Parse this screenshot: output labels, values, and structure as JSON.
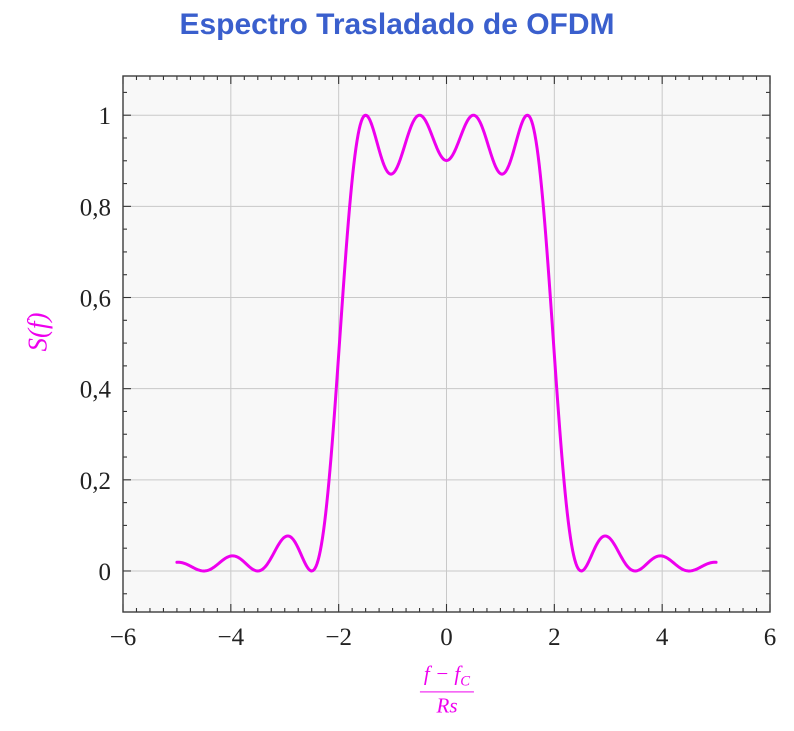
{
  "chart_data": {
    "type": "line",
    "title": "Espectro Trasladado de OFDM",
    "ylabel": "S(f)",
    "xlabel": "(f − f_C) / Rs",
    "xlabel_parts": {
      "numerator_main": "f − f",
      "numerator_sub": "C",
      "denominator": "Rs"
    },
    "xlim": [
      -6,
      6
    ],
    "ylim": [
      -0.09,
      1.086
    ],
    "xticks": {
      "values": [
        -6,
        -4,
        -2,
        0,
        2,
        4,
        6
      ],
      "labels": [
        "−6",
        "−4",
        "−2",
        "0",
        "2",
        "4",
        "6"
      ]
    },
    "yticks": {
      "values": [
        0,
        0.2,
        0.4,
        0.6,
        0.8,
        1
      ],
      "labels": [
        "0",
        "0,2",
        "0,4",
        "0,6",
        "0,8",
        "1"
      ]
    },
    "minor_x_step": 0.25,
    "minor_y_step": 0.05,
    "grid": "major",
    "legend": "none",
    "series": [
      {
        "name": "S(f)",
        "model": "sum of sinc^2(f - fk) over OFDM subcarriers",
        "subcarriers": [
          -1.5,
          -0.5,
          0.5,
          1.5
        ],
        "f_range": [
          -5,
          5
        ],
        "samples": {
          "x": [
            -5,
            -4.5,
            -4,
            -3.5,
            -3,
            -2.5,
            -2,
            -1.5,
            -1,
            -0.5,
            0,
            0.5,
            1,
            1.5,
            2,
            2.5,
            3,
            3.5,
            4,
            4.5,
            5
          ],
          "y": [
            0.019,
            0,
            0.033,
            0,
            0.075,
            0,
            0.475,
            1,
            0.872,
            1,
            0.901,
            1,
            0.872,
            1,
            0.475,
            0,
            0.075,
            0,
            0.033,
            0,
            0.019
          ]
        }
      }
    ],
    "colors": {
      "curve": "#ee00ee",
      "title": "#3a5fcd",
      "axis_labels": "#ee00ee",
      "grid": "#c9c9c9",
      "frame": "#3c3c3c",
      "plot_bg": "#f8f8f8",
      "tick": "#333333"
    }
  }
}
